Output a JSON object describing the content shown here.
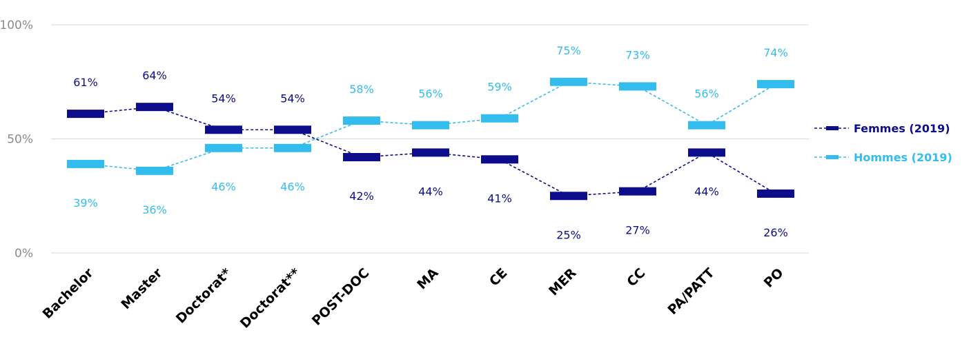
{
  "chart_data": {
    "type": "line",
    "categories": [
      "Bachelor",
      "Master",
      "Doctorat*",
      "Doctorat**",
      "POST-DOC",
      "MA",
      "CE",
      "MER",
      "CC",
      "PA/PATT",
      "PO"
    ],
    "series": [
      {
        "name": "Femmes (2019)",
        "values": [
          61,
          64,
          54,
          54,
          42,
          44,
          41,
          25,
          27,
          44,
          26
        ],
        "labels": [
          "61%",
          "64%",
          "54%",
          "54%",
          "42%",
          "44%",
          "41%",
          "25%",
          "27%",
          "44%",
          "26%"
        ],
        "color": "#0d0d8c",
        "line_style": "dashed",
        "marker": "bar"
      },
      {
        "name": "Hommes (2019)",
        "values": [
          39,
          36,
          46,
          46,
          58,
          56,
          59,
          75,
          73,
          56,
          74
        ],
        "labels": [
          "39%",
          "36%",
          "46%",
          "46%",
          "58%",
          "56%",
          "59%",
          "75%",
          "73%",
          "56%",
          "74%"
        ],
        "color": "#33bdee",
        "line_style": "dashed",
        "marker": "bar"
      }
    ],
    "y_ticks": [
      "0%",
      "50%",
      "100%"
    ],
    "y_tick_values": [
      0,
      50,
      100
    ],
    "ylim": [
      0,
      100
    ],
    "grid": true,
    "legend": "right"
  }
}
